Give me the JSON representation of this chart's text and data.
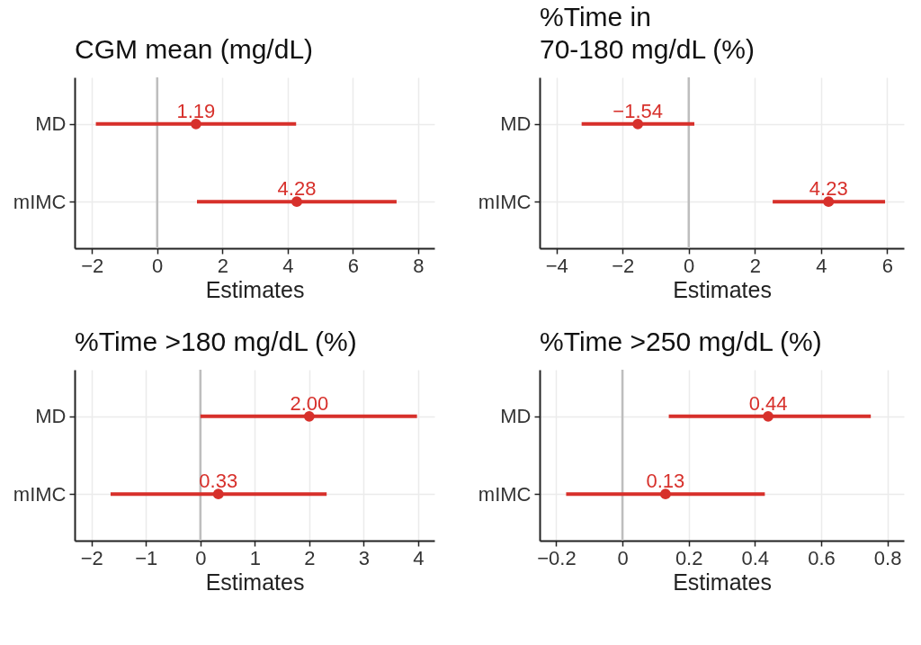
{
  "chart_data": [
    {
      "type": "scatter",
      "orientation": "horizontal",
      "title": "CGM mean (mg/dL)",
      "xlabel": "Estimates",
      "categories": [
        "MD",
        "mIMC"
      ],
      "xlim": [
        -2.53,
        8.5
      ],
      "xticks": [
        -2,
        0,
        2,
        4,
        6,
        8
      ],
      "grid": true,
      "marker": "circle",
      "ref_lines": [
        {
          "axis": "x",
          "value": 0,
          "color": "#bebebe"
        }
      ],
      "series": [
        {
          "color": "#d7302b",
          "values": [
            1.19,
            4.28
          ],
          "errors": [
            [
              -1.88,
              4.26
            ],
            [
              1.22,
              7.34
            ]
          ],
          "value_labels": [
            "1.19",
            "4.28"
          ]
        }
      ]
    },
    {
      "type": "scatter",
      "orientation": "horizontal",
      "title": "%Time in\n70-180 mg/dL (%)",
      "xlabel": "Estimates",
      "categories": [
        "MD",
        "mIMC"
      ],
      "xlim": [
        -4.51,
        6.51
      ],
      "xticks": [
        -4,
        -2,
        0,
        2,
        4,
        6
      ],
      "grid": true,
      "marker": "circle",
      "ref_lines": [
        {
          "axis": "x",
          "value": 0,
          "color": "#bebebe"
        }
      ],
      "series": [
        {
          "color": "#d7302b",
          "values": [
            -1.54,
            4.23
          ],
          "errors": [
            [
              -3.24,
              0.17
            ],
            [
              2.54,
              5.94
            ]
          ],
          "value_labels": [
            "−1.54",
            "4.23"
          ]
        }
      ]
    },
    {
      "type": "scatter",
      "orientation": "horizontal",
      "title": "%Time >180 mg/dL (%)",
      "xlabel": "Estimates",
      "categories": [
        "MD",
        "mIMC"
      ],
      "xlim": [
        -2.31,
        4.3
      ],
      "xticks": [
        -2,
        -1,
        0,
        1,
        2,
        3,
        4
      ],
      "grid": true,
      "marker": "circle",
      "ref_lines": [
        {
          "axis": "x",
          "value": 0,
          "color": "#bebebe"
        }
      ],
      "series": [
        {
          "color": "#d7302b",
          "values": [
            2.0,
            0.33
          ],
          "errors": [
            [
              0.0,
              3.98
            ],
            [
              -1.65,
              2.32
            ]
          ],
          "value_labels": [
            "2.00",
            "0.33"
          ]
        }
      ]
    },
    {
      "type": "scatter",
      "orientation": "horizontal",
      "title": "%Time >250 mg/dL (%)",
      "xlabel": "Estimates",
      "categories": [
        "MD",
        "mIMC"
      ],
      "xlim": [
        -0.25,
        0.85
      ],
      "xticks": [
        -0.2,
        0,
        0.2,
        0.4,
        0.6,
        0.8
      ],
      "grid": true,
      "marker": "circle",
      "ref_lines": [
        {
          "axis": "x",
          "value": 0,
          "color": "#bebebe"
        }
      ],
      "series": [
        {
          "color": "#d7302b",
          "values": [
            0.44,
            0.13
          ],
          "errors": [
            [
              0.14,
              0.75
            ],
            [
              -0.17,
              0.43
            ]
          ],
          "value_labels": [
            "0.44",
            "0.13"
          ]
        }
      ]
    }
  ]
}
